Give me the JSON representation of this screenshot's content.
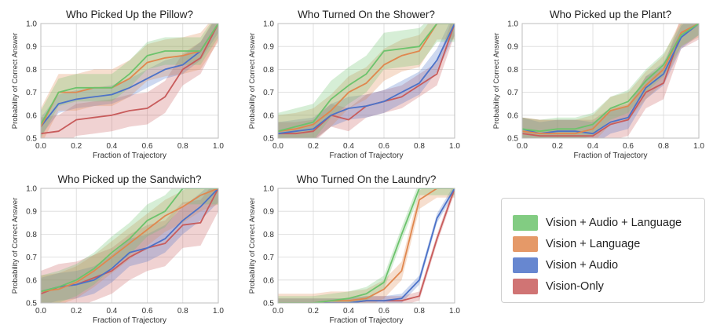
{
  "colors": {
    "series": [
      "#6cc36c",
      "#e0874e",
      "#4c72c8",
      "#c85c5c"
    ],
    "grid": "#d9d9d9",
    "axis": "#333333"
  },
  "legend": {
    "placement": "bottom-right",
    "entries": [
      "Vision + Audio + Language",
      "Vision + Language",
      "Vision + Audio",
      "Vision-Only"
    ]
  },
  "chart_data": [
    {
      "type": "line",
      "title": "Who Picked Up the Pillow?",
      "xlabel": "Fraction of Trajectory",
      "ylabel": "Probability of Correct Answer",
      "xlim": [
        0.0,
        1.0
      ],
      "ylim": [
        0.5,
        1.0
      ],
      "xticks": [
        "0.0",
        "0.2",
        "0.4",
        "0.6",
        "0.8",
        "1.0"
      ],
      "yticks": [
        "0.5",
        "0.6",
        "0.7",
        "0.8",
        "0.9",
        "1.0"
      ],
      "grid": true,
      "x": [
        0.0,
        0.1,
        0.2,
        0.3,
        0.4,
        0.5,
        0.6,
        0.7,
        0.8,
        0.9,
        1.0
      ],
      "series": [
        {
          "name": "Vision + Audio + Language",
          "values": [
            0.56,
            0.7,
            0.72,
            0.72,
            0.72,
            0.78,
            0.86,
            0.88,
            0.88,
            0.88,
            1.0
          ],
          "band": 0.06
        },
        {
          "name": "Vision + Language",
          "values": [
            0.55,
            0.7,
            0.7,
            0.72,
            0.72,
            0.76,
            0.83,
            0.85,
            0.86,
            0.88,
            1.0
          ],
          "band": 0.08
        },
        {
          "name": "Vision + Audio",
          "values": [
            0.55,
            0.65,
            0.67,
            0.68,
            0.69,
            0.72,
            0.76,
            0.8,
            0.82,
            0.88,
            1.0
          ],
          "band": 0.04
        },
        {
          "name": "Vision-Only",
          "values": [
            0.52,
            0.53,
            0.58,
            0.59,
            0.6,
            0.62,
            0.63,
            0.68,
            0.8,
            0.85,
            1.0
          ],
          "band": 0.07
        }
      ]
    },
    {
      "type": "line",
      "title": "Who Turned On the Shower?",
      "xlabel": "Fraction of Trajectory",
      "ylabel": "Probability of Correct Answer",
      "xlim": [
        0.0,
        1.0
      ],
      "ylim": [
        0.5,
        1.0
      ],
      "xticks": [
        "0.0",
        "0.2",
        "0.4",
        "0.6",
        "0.8",
        "1.0"
      ],
      "yticks": [
        "0.5",
        "0.6",
        "0.7",
        "0.8",
        "0.9",
        "1.0"
      ],
      "grid": true,
      "x": [
        0.0,
        0.1,
        0.2,
        0.3,
        0.4,
        0.5,
        0.6,
        0.7,
        0.8,
        0.9,
        1.0
      ],
      "series": [
        {
          "name": "Vision + Audio + Language",
          "values": [
            0.53,
            0.55,
            0.57,
            0.67,
            0.73,
            0.78,
            0.88,
            0.89,
            0.9,
            1.0,
            1.0
          ],
          "band": 0.08
        },
        {
          "name": "Vision + Language",
          "values": [
            0.53,
            0.54,
            0.56,
            0.62,
            0.7,
            0.74,
            0.82,
            0.86,
            0.88,
            1.0,
            1.0
          ],
          "band": 0.07
        },
        {
          "name": "Vision + Audio",
          "values": [
            0.52,
            0.53,
            0.54,
            0.6,
            0.63,
            0.64,
            0.66,
            0.7,
            0.74,
            0.84,
            1.0
          ],
          "band": 0.05
        },
        {
          "name": "Vision-Only",
          "values": [
            0.52,
            0.52,
            0.53,
            0.6,
            0.58,
            0.64,
            0.66,
            0.68,
            0.73,
            0.78,
            1.0
          ],
          "band": 0.05
        }
      ]
    },
    {
      "type": "line",
      "title": "Who Picked up the Plant?",
      "xlabel": "Fraction of Trajectory",
      "ylabel": "Probability of Correct Answer",
      "xlim": [
        0.0,
        1.0
      ],
      "ylim": [
        0.5,
        1.0
      ],
      "xticks": [
        "0.0",
        "0.2",
        "0.4",
        "0.6",
        "0.8",
        "1.0"
      ],
      "yticks": [
        "0.5",
        "0.6",
        "0.7",
        "0.8",
        "0.9",
        "1.0"
      ],
      "grid": true,
      "x": [
        0.0,
        0.1,
        0.2,
        0.3,
        0.4,
        0.5,
        0.6,
        0.7,
        0.8,
        0.9,
        1.0
      ],
      "series": [
        {
          "name": "Vision + Audio + Language",
          "values": [
            0.54,
            0.53,
            0.54,
            0.54,
            0.56,
            0.63,
            0.66,
            0.75,
            0.82,
            0.95,
            1.0
          ],
          "band": 0.05
        },
        {
          "name": "Vision + Language",
          "values": [
            0.53,
            0.52,
            0.52,
            0.52,
            0.54,
            0.62,
            0.64,
            0.73,
            0.8,
            0.96,
            1.0
          ],
          "band": 0.06
        },
        {
          "name": "Vision + Audio",
          "values": [
            0.54,
            0.52,
            0.53,
            0.53,
            0.52,
            0.57,
            0.59,
            0.72,
            0.78,
            0.94,
            1.0
          ],
          "band": 0.05
        },
        {
          "name": "Vision-Only",
          "values": [
            0.52,
            0.51,
            0.51,
            0.51,
            0.51,
            0.56,
            0.58,
            0.7,
            0.74,
            0.96,
            1.0
          ],
          "band": 0.07
        }
      ]
    },
    {
      "type": "line",
      "title": "Who Picked up the Sandwich?",
      "xlabel": "Fraction of Trajectory",
      "ylabel": "Probability of Correct Answer",
      "xlim": [
        0.0,
        1.0
      ],
      "ylim": [
        0.5,
        1.0
      ],
      "xticks": [
        "0.0",
        "0.2",
        "0.4",
        "0.6",
        "0.8",
        "1.0"
      ],
      "yticks": [
        "0.5",
        "0.6",
        "0.7",
        "0.8",
        "0.9",
        "1.0"
      ],
      "grid": true,
      "x": [
        0.0,
        0.1,
        0.2,
        0.3,
        0.4,
        0.5,
        0.6,
        0.7,
        0.8,
        0.9,
        1.0
      ],
      "series": [
        {
          "name": "Vision + Audio + Language",
          "values": [
            0.55,
            0.57,
            0.6,
            0.65,
            0.72,
            0.78,
            0.86,
            0.9,
            1.0,
            1.0,
            1.0
          ],
          "band": 0.07
        },
        {
          "name": "Vision + Language",
          "values": [
            0.55,
            0.56,
            0.59,
            0.64,
            0.7,
            0.76,
            0.82,
            0.88,
            0.92,
            0.97,
            1.0
          ],
          "band": 0.07
        },
        {
          "name": "Vision + Audio",
          "values": [
            0.55,
            0.57,
            0.58,
            0.6,
            0.65,
            0.72,
            0.74,
            0.78,
            0.86,
            0.92,
            1.0
          ],
          "band": 0.06
        },
        {
          "name": "Vision-Only",
          "values": [
            0.54,
            0.57,
            0.58,
            0.61,
            0.64,
            0.7,
            0.74,
            0.76,
            0.84,
            0.85,
            1.0
          ],
          "band": 0.1
        }
      ]
    },
    {
      "type": "line",
      "title": "Who Turned On the Laundry?",
      "xlabel": "Fraction of Trajectory",
      "ylabel": "Probability of Correct Answer",
      "xlim": [
        0.0,
        1.0
      ],
      "ylim": [
        0.5,
        1.0
      ],
      "xticks": [
        "0.0",
        "0.2",
        "0.4",
        "0.6",
        "0.8",
        "1.0"
      ],
      "yticks": [
        "0.5",
        "0.6",
        "0.7",
        "0.8",
        "0.9",
        "1.0"
      ],
      "grid": true,
      "x": [
        0.0,
        0.1,
        0.2,
        0.3,
        0.4,
        0.5,
        0.6,
        0.7,
        0.8,
        0.9,
        1.0
      ],
      "series": [
        {
          "name": "Vision + Audio + Language",
          "values": [
            0.5,
            0.5,
            0.5,
            0.51,
            0.52,
            0.54,
            0.59,
            0.8,
            1.0,
            1.0,
            1.0
          ],
          "band": 0.03
        },
        {
          "name": "Vision + Language",
          "values": [
            0.5,
            0.5,
            0.5,
            0.51,
            0.51,
            0.52,
            0.56,
            0.64,
            0.95,
            1.0,
            1.0
          ],
          "band": 0.04
        },
        {
          "name": "Vision + Audio",
          "values": [
            0.5,
            0.5,
            0.5,
            0.5,
            0.5,
            0.51,
            0.51,
            0.52,
            0.6,
            0.87,
            1.0
          ],
          "band": 0.02
        },
        {
          "name": "Vision-Only",
          "values": [
            0.5,
            0.5,
            0.5,
            0.5,
            0.5,
            0.51,
            0.51,
            0.51,
            0.53,
            0.78,
            1.0
          ],
          "band": 0.02
        }
      ]
    }
  ]
}
